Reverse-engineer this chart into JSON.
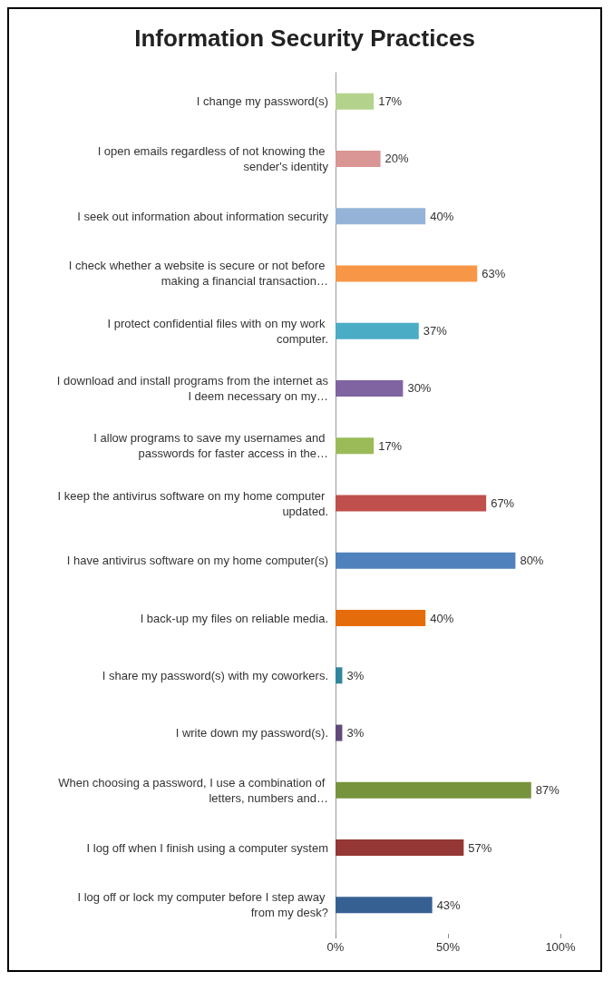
{
  "chart_data": {
    "type": "bar",
    "orientation": "horizontal",
    "title": "Information Security Practices",
    "categories": [
      "I change my password(s)",
      "I open emails regardless of not knowing the sender's identity",
      "I seek out information about information security",
      "I check whether a website is secure or not before making a financial transaction…",
      "I protect confidential files with on my work computer.",
      "I download and install programs from the internet as I deem necessary on my…",
      "I allow programs to save my usernames and passwords for faster access in the…",
      "I keep the antivirus software on my home computer updated.",
      "I have antivirus software on my home computer(s)",
      "I back-up my files on reliable media.",
      "I share my password(s) with my coworkers.",
      "I write down my password(s).",
      "When choosing a password, I use a combination of letters, numbers and…",
      "I log off when I finish using a computer system",
      "I log off or lock my computer before I step away from my desk?"
    ],
    "values": [
      17,
      20,
      40,
      63,
      37,
      30,
      17,
      67,
      80,
      40,
      3,
      3,
      87,
      57,
      43
    ],
    "colors": [
      "#b3d38c",
      "#d99694",
      "#95b3d7",
      "#f79646",
      "#4bacc6",
      "#8064a2",
      "#9bbb59",
      "#c0504d",
      "#4f81bd",
      "#e46c0a",
      "#31859c",
      "#604a7b",
      "#77933c",
      "#953735",
      "#376092"
    ],
    "value_labels": [
      "17%",
      "20%",
      "40%",
      "63%",
      "37%",
      "30%",
      "17%",
      "67%",
      "80%",
      "40%",
      "3%",
      "3%",
      "87%",
      "57%",
      "43%"
    ],
    "xlim": [
      0,
      100
    ],
    "xticks": [
      {
        "value": 0,
        "label": "0%"
      },
      {
        "value": 50,
        "label": "50%"
      },
      {
        "value": 100,
        "label": "100%"
      }
    ],
    "grid": false
  }
}
